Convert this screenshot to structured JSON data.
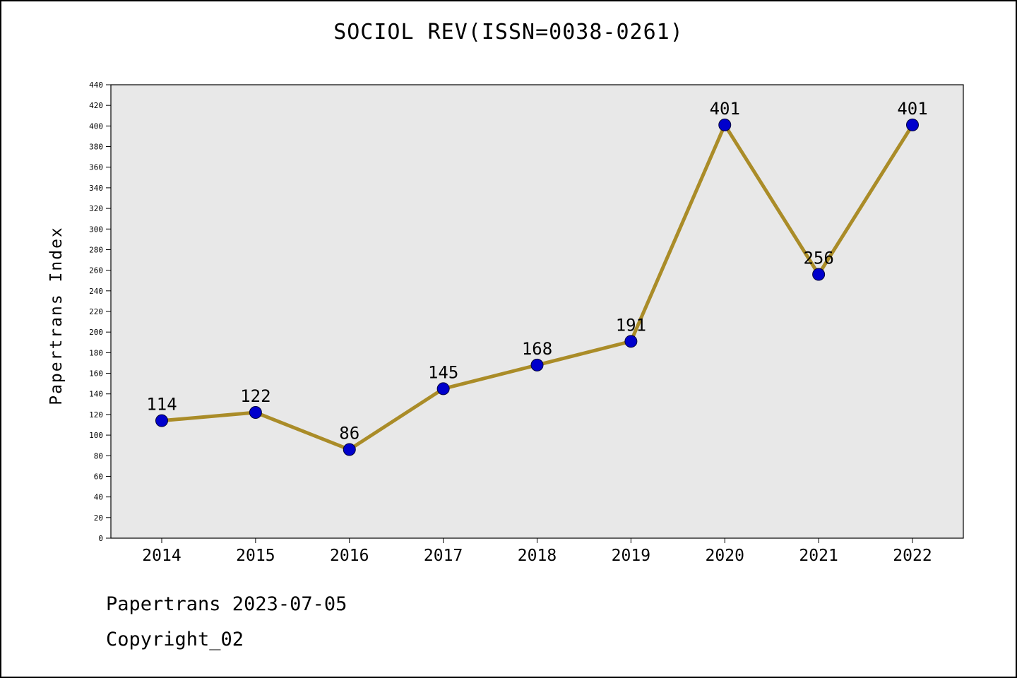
{
  "title": "SOCIOL REV(ISSN=0038-0261)",
  "footer": {
    "line1": "Papertrans 2023-07-05",
    "line2": "Copyright_02"
  },
  "chart_data": {
    "type": "line",
    "title": "SOCIOL REV(ISSN=0038-0261)",
    "x": [
      "2014",
      "2015",
      "2016",
      "2017",
      "2018",
      "2019",
      "2020",
      "2021",
      "2022"
    ],
    "values": [
      114,
      122,
      86,
      145,
      168,
      191,
      401,
      256,
      401
    ],
    "xlabel": "",
    "ylabel": "Papertrans Index",
    "ylim": [
      0,
      440
    ],
    "ytick_step": 20,
    "grid": false,
    "legend": "none",
    "line_color": "#aa8c28",
    "marker_color": "#0000cc",
    "marker_edge_color": "#00003a",
    "plot_bg": "#e8e8e8"
  }
}
